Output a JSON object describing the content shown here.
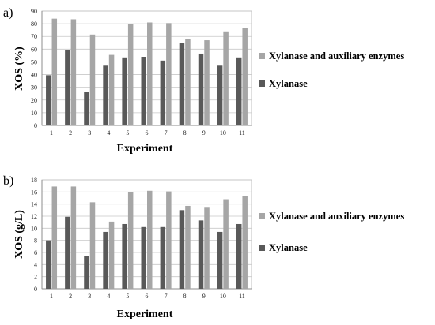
{
  "chart_data": [
    {
      "type": "bar",
      "panel_label": "a)",
      "ylabel": "XOS (%)",
      "xlabel": "Experiment",
      "categories": [
        "1",
        "2",
        "3",
        "4",
        "5",
        "6",
        "7",
        "8",
        "9",
        "10",
        "11"
      ],
      "ylim": [
        0,
        90
      ],
      "yticks": [
        "0",
        "10",
        "20",
        "30",
        "40",
        "50",
        "60",
        "70",
        "80",
        "90"
      ],
      "grid": true,
      "legend_position": "right",
      "series": [
        {
          "name": "Xylanase and auxiliary enzymes",
          "color": "#a6a6a6",
          "values": [
            84,
            83.5,
            71.5,
            55.5,
            80,
            81,
            80.5,
            68,
            67,
            74,
            76.5
          ]
        },
        {
          "name": "Xylanase",
          "color": "#595959",
          "values": [
            39.5,
            59,
            26.5,
            47,
            53.5,
            54,
            51,
            65,
            56.5,
            47,
            53.5
          ]
        }
      ]
    },
    {
      "type": "bar",
      "panel_label": "b)",
      "ylabel": "XOS (g/L)",
      "xlabel": "Experiment",
      "categories": [
        "1",
        "2",
        "3",
        "4",
        "5",
        "6",
        "7",
        "8",
        "9",
        "10",
        "11"
      ],
      "ylim": [
        0,
        18
      ],
      "yticks": [
        "0",
        "2",
        "4",
        "6",
        "8",
        "10",
        "12",
        "14",
        "16",
        "18"
      ],
      "grid": true,
      "legend_position": "right",
      "series": [
        {
          "name": "Xylanase and auxiliary enzymes",
          "color": "#a6a6a6",
          "values": [
            16.9,
            16.9,
            14.3,
            11.1,
            16.0,
            16.2,
            16.1,
            13.7,
            13.4,
            14.8,
            15.3
          ]
        },
        {
          "name": "Xylanase",
          "color": "#595959",
          "values": [
            8.0,
            11.9,
            5.4,
            9.4,
            10.7,
            10.2,
            10.2,
            13.0,
            11.3,
            9.4,
            10.7
          ]
        }
      ]
    }
  ]
}
